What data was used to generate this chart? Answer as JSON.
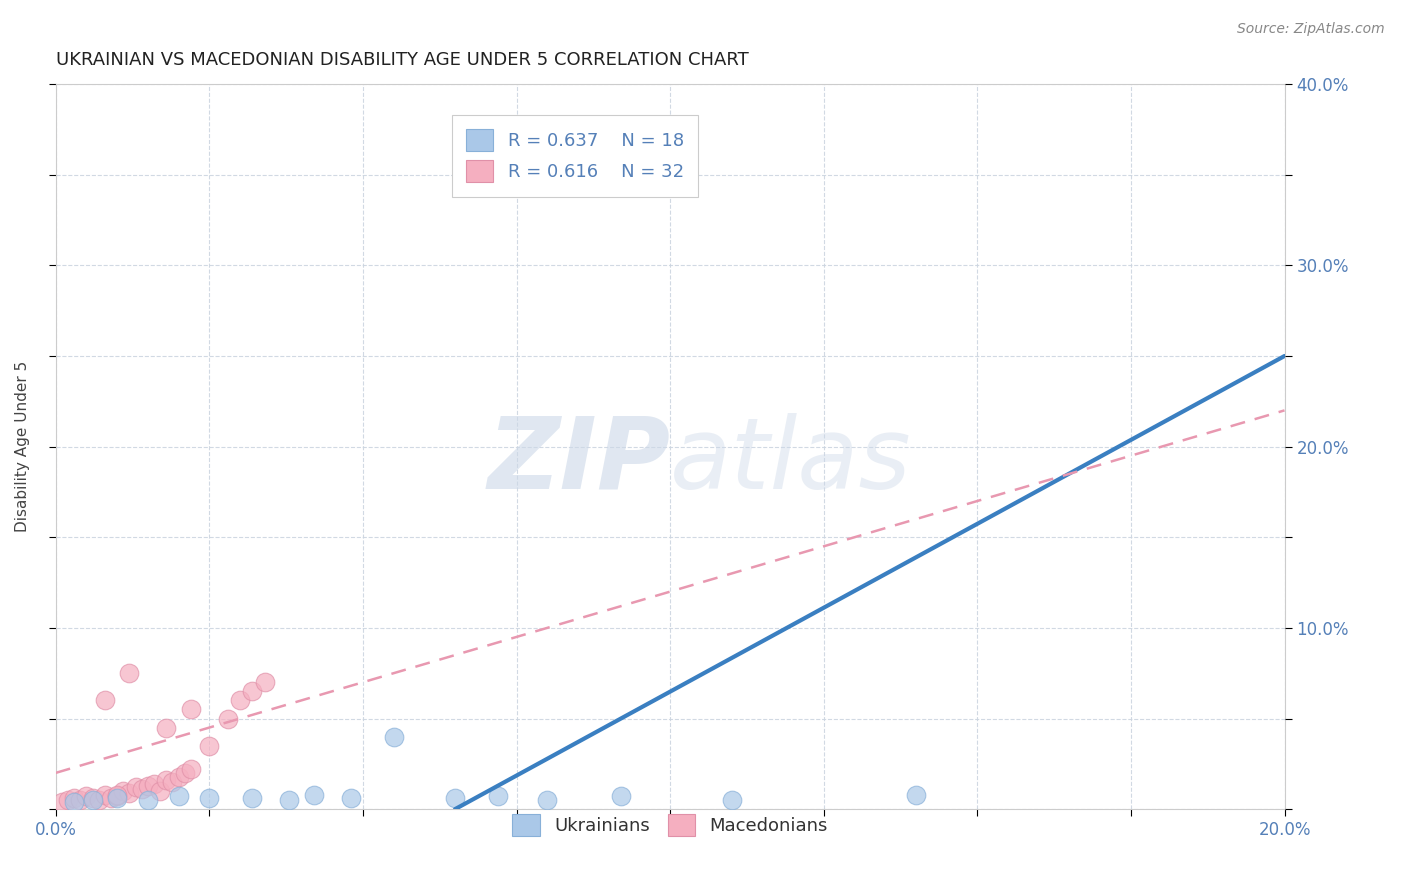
{
  "title": "UKRAINIAN VS MACEDONIAN DISABILITY AGE UNDER 5 CORRELATION CHART",
  "source": "Source: ZipAtlas.com",
  "ylabel": "Disability Age Under 5",
  "xlim": [
    0.0,
    0.2
  ],
  "ylim": [
    0.0,
    0.4
  ],
  "xticks": [
    0.0,
    0.025,
    0.05,
    0.075,
    0.1,
    0.125,
    0.15,
    0.175,
    0.2
  ],
  "yticks": [
    0.0,
    0.05,
    0.1,
    0.15,
    0.2,
    0.25,
    0.3,
    0.35,
    0.4
  ],
  "background_color": "#ffffff",
  "grid_color": "#ccd5e0",
  "ukrainians_color": "#aac8e8",
  "macedonians_color": "#f5afc0",
  "ukr_line_color": "#3a7fc1",
  "mac_line_color": "#e898b0",
  "R_ukr": 0.637,
  "N_ukr": 18,
  "R_mac": 0.616,
  "N_mac": 32,
  "ukrainians_x": [
    0.003,
    0.006,
    0.01,
    0.015,
    0.02,
    0.025,
    0.032,
    0.038,
    0.042,
    0.048,
    0.055,
    0.065,
    0.072,
    0.08,
    0.092,
    0.11,
    0.09,
    0.14
  ],
  "ukrainians_y": [
    0.004,
    0.005,
    0.006,
    0.005,
    0.007,
    0.006,
    0.006,
    0.005,
    0.008,
    0.006,
    0.04,
    0.006,
    0.007,
    0.005,
    0.007,
    0.005,
    0.348,
    0.008
  ],
  "macedonians_x": [
    0.001,
    0.002,
    0.003,
    0.004,
    0.005,
    0.006,
    0.007,
    0.008,
    0.009,
    0.01,
    0.011,
    0.012,
    0.013,
    0.014,
    0.015,
    0.016,
    0.017,
    0.018,
    0.019,
    0.02,
    0.021,
    0.022,
    0.025,
    0.028,
    0.03,
    0.032,
    0.034,
    0.018,
    0.022,
    0.01,
    0.008,
    0.012
  ],
  "macedonians_y": [
    0.004,
    0.005,
    0.006,
    0.005,
    0.007,
    0.006,
    0.005,
    0.008,
    0.006,
    0.007,
    0.01,
    0.009,
    0.012,
    0.011,
    0.013,
    0.014,
    0.01,
    0.016,
    0.015,
    0.018,
    0.02,
    0.022,
    0.035,
    0.05,
    0.06,
    0.065,
    0.07,
    0.045,
    0.055,
    0.008,
    0.06,
    0.075
  ],
  "ukr_line_x": [
    0.065,
    0.2
  ],
  "ukr_line_y": [
    0.0,
    0.25
  ],
  "mac_line_x": [
    0.0,
    0.2
  ],
  "mac_line_y": [
    0.02,
    0.22
  ],
  "watermark_color": "#ccd8e8",
  "watermark_alpha": 0.6,
  "legend_fontsize": 13,
  "title_fontsize": 13,
  "axis_label_fontsize": 11,
  "tick_fontsize": 12
}
